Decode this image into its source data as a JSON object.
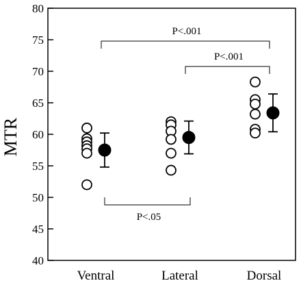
{
  "chart_data": {
    "type": "scatter",
    "ylabel": "MTR",
    "xlabel": "",
    "title": "",
    "ylim": [
      40,
      80
    ],
    "yticks": [
      40,
      45,
      50,
      55,
      60,
      65,
      70,
      75,
      80
    ],
    "grid": false,
    "categories": [
      "Ventral",
      "Lateral",
      "Dorsal"
    ],
    "individual_points": [
      [
        61.0,
        59.3,
        58.8,
        58.2,
        57.7,
        57.0,
        52.0
      ],
      [
        62.0,
        61.5,
        60.5,
        59.2,
        57.0,
        54.3
      ],
      [
        68.3,
        65.5,
        64.8,
        63.2,
        60.8,
        60.2
      ]
    ],
    "means": [
      57.5,
      59.5,
      63.4
    ],
    "sd": [
      2.7,
      2.6,
      3.0
    ],
    "comparisons": [
      {
        "from": "Ventral",
        "to": "Dorsal",
        "label": "P<.001",
        "position": "above"
      },
      {
        "from": "Lateral",
        "to": "Dorsal",
        "label": "P<.001",
        "position": "above"
      },
      {
        "from": "Ventral",
        "to": "Lateral",
        "label": "P<.05",
        "position": "below"
      }
    ]
  }
}
